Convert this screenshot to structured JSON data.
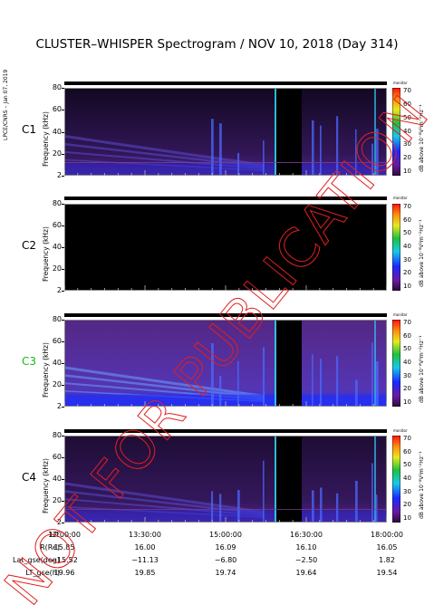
{
  "title": "CLUSTER–WHISPER Spectrogram / NOV 10, 2018 (Day 314)",
  "side_credit": "LPCE/CNRS – Jan 07, 2019",
  "watermark": "NOT FOR PUBLICATION",
  "colors": {
    "watermark": "#e02020",
    "c3_label": "#18b818",
    "background": "#ffffff"
  },
  "chart_data": [
    {
      "type": "heatmap",
      "panel": "C1",
      "label": "C1",
      "ylabel": "Frequency (kHz)",
      "yticks": [
        "80",
        "60",
        "40",
        "20",
        "2"
      ],
      "ylim": [
        2,
        80
      ],
      "colorbar": {
        "title": "dB above 10⁻⁸V²m⁻²Hz⁻¹",
        "top": "monitor",
        "ticks": [
          "70",
          "60",
          "50",
          "40",
          "30",
          "20",
          "10"
        ],
        "range": [
          10,
          70
        ]
      },
      "intensity": "low",
      "has_data": true,
      "gap": true
    },
    {
      "type": "heatmap",
      "panel": "C2",
      "label": "C2",
      "ylabel": "Frequency (kHz)",
      "yticks": [
        "80",
        "60",
        "40",
        "20",
        "2"
      ],
      "ylim": [
        2,
        80
      ],
      "colorbar": {
        "title": "dB above 10⁻⁸V²m⁻²Hz⁻¹",
        "top": "monitor",
        "ticks": [
          "70",
          "60",
          "50",
          "40",
          "30",
          "20",
          "10"
        ],
        "range": [
          10,
          70
        ]
      },
      "intensity": "none",
      "has_data": false,
      "gap": false
    },
    {
      "type": "heatmap",
      "panel": "C3",
      "label": "C3",
      "ylabel": "Frequency (kHz)",
      "yticks": [
        "80",
        "60",
        "40",
        "20",
        "2"
      ],
      "ylim": [
        2,
        80
      ],
      "colorbar": {
        "title": "dB above 10⁻⁸V²m⁻²Hz⁻¹",
        "top": "monitor",
        "ticks": [
          "70",
          "60",
          "50",
          "40",
          "30",
          "20",
          "10"
        ],
        "range": [
          10,
          70
        ]
      },
      "intensity": "high",
      "has_data": true,
      "gap": true
    },
    {
      "type": "heatmap",
      "panel": "C4",
      "label": "C4",
      "ylabel": "Frequency (kHz)",
      "yticks": [
        "80",
        "60",
        "40",
        "20",
        "2"
      ],
      "ylim": [
        2,
        80
      ],
      "colorbar": {
        "title": "dB above 10⁻⁸V²m⁻²Hz⁻¹",
        "top": "monitor",
        "ticks": [
          "70",
          "60",
          "50",
          "40",
          "30",
          "20",
          "10"
        ],
        "range": [
          10,
          70
        ]
      },
      "intensity": "medium",
      "has_data": true,
      "gap": true
    }
  ],
  "x_axis": {
    "rows": [
      {
        "label": "UT",
        "values": [
          "12:00:00",
          "13:30:00",
          "15:00:00",
          "16:30:00",
          "18:00:00"
        ]
      },
      {
        "label": "R(Re)",
        "values": [
          "15.85",
          "16.00",
          "16.09",
          "16.10",
          "16.05"
        ]
      },
      {
        "label": "Lat_gse(deg)",
        "values": [
          "−15.52",
          "−11.13",
          "−6.80",
          "−2.50",
          "1.82"
        ]
      },
      {
        "label": "LT_gse(h)",
        "values": [
          "19.96",
          "19.85",
          "19.74",
          "19.64",
          "19.54"
        ]
      }
    ]
  }
}
